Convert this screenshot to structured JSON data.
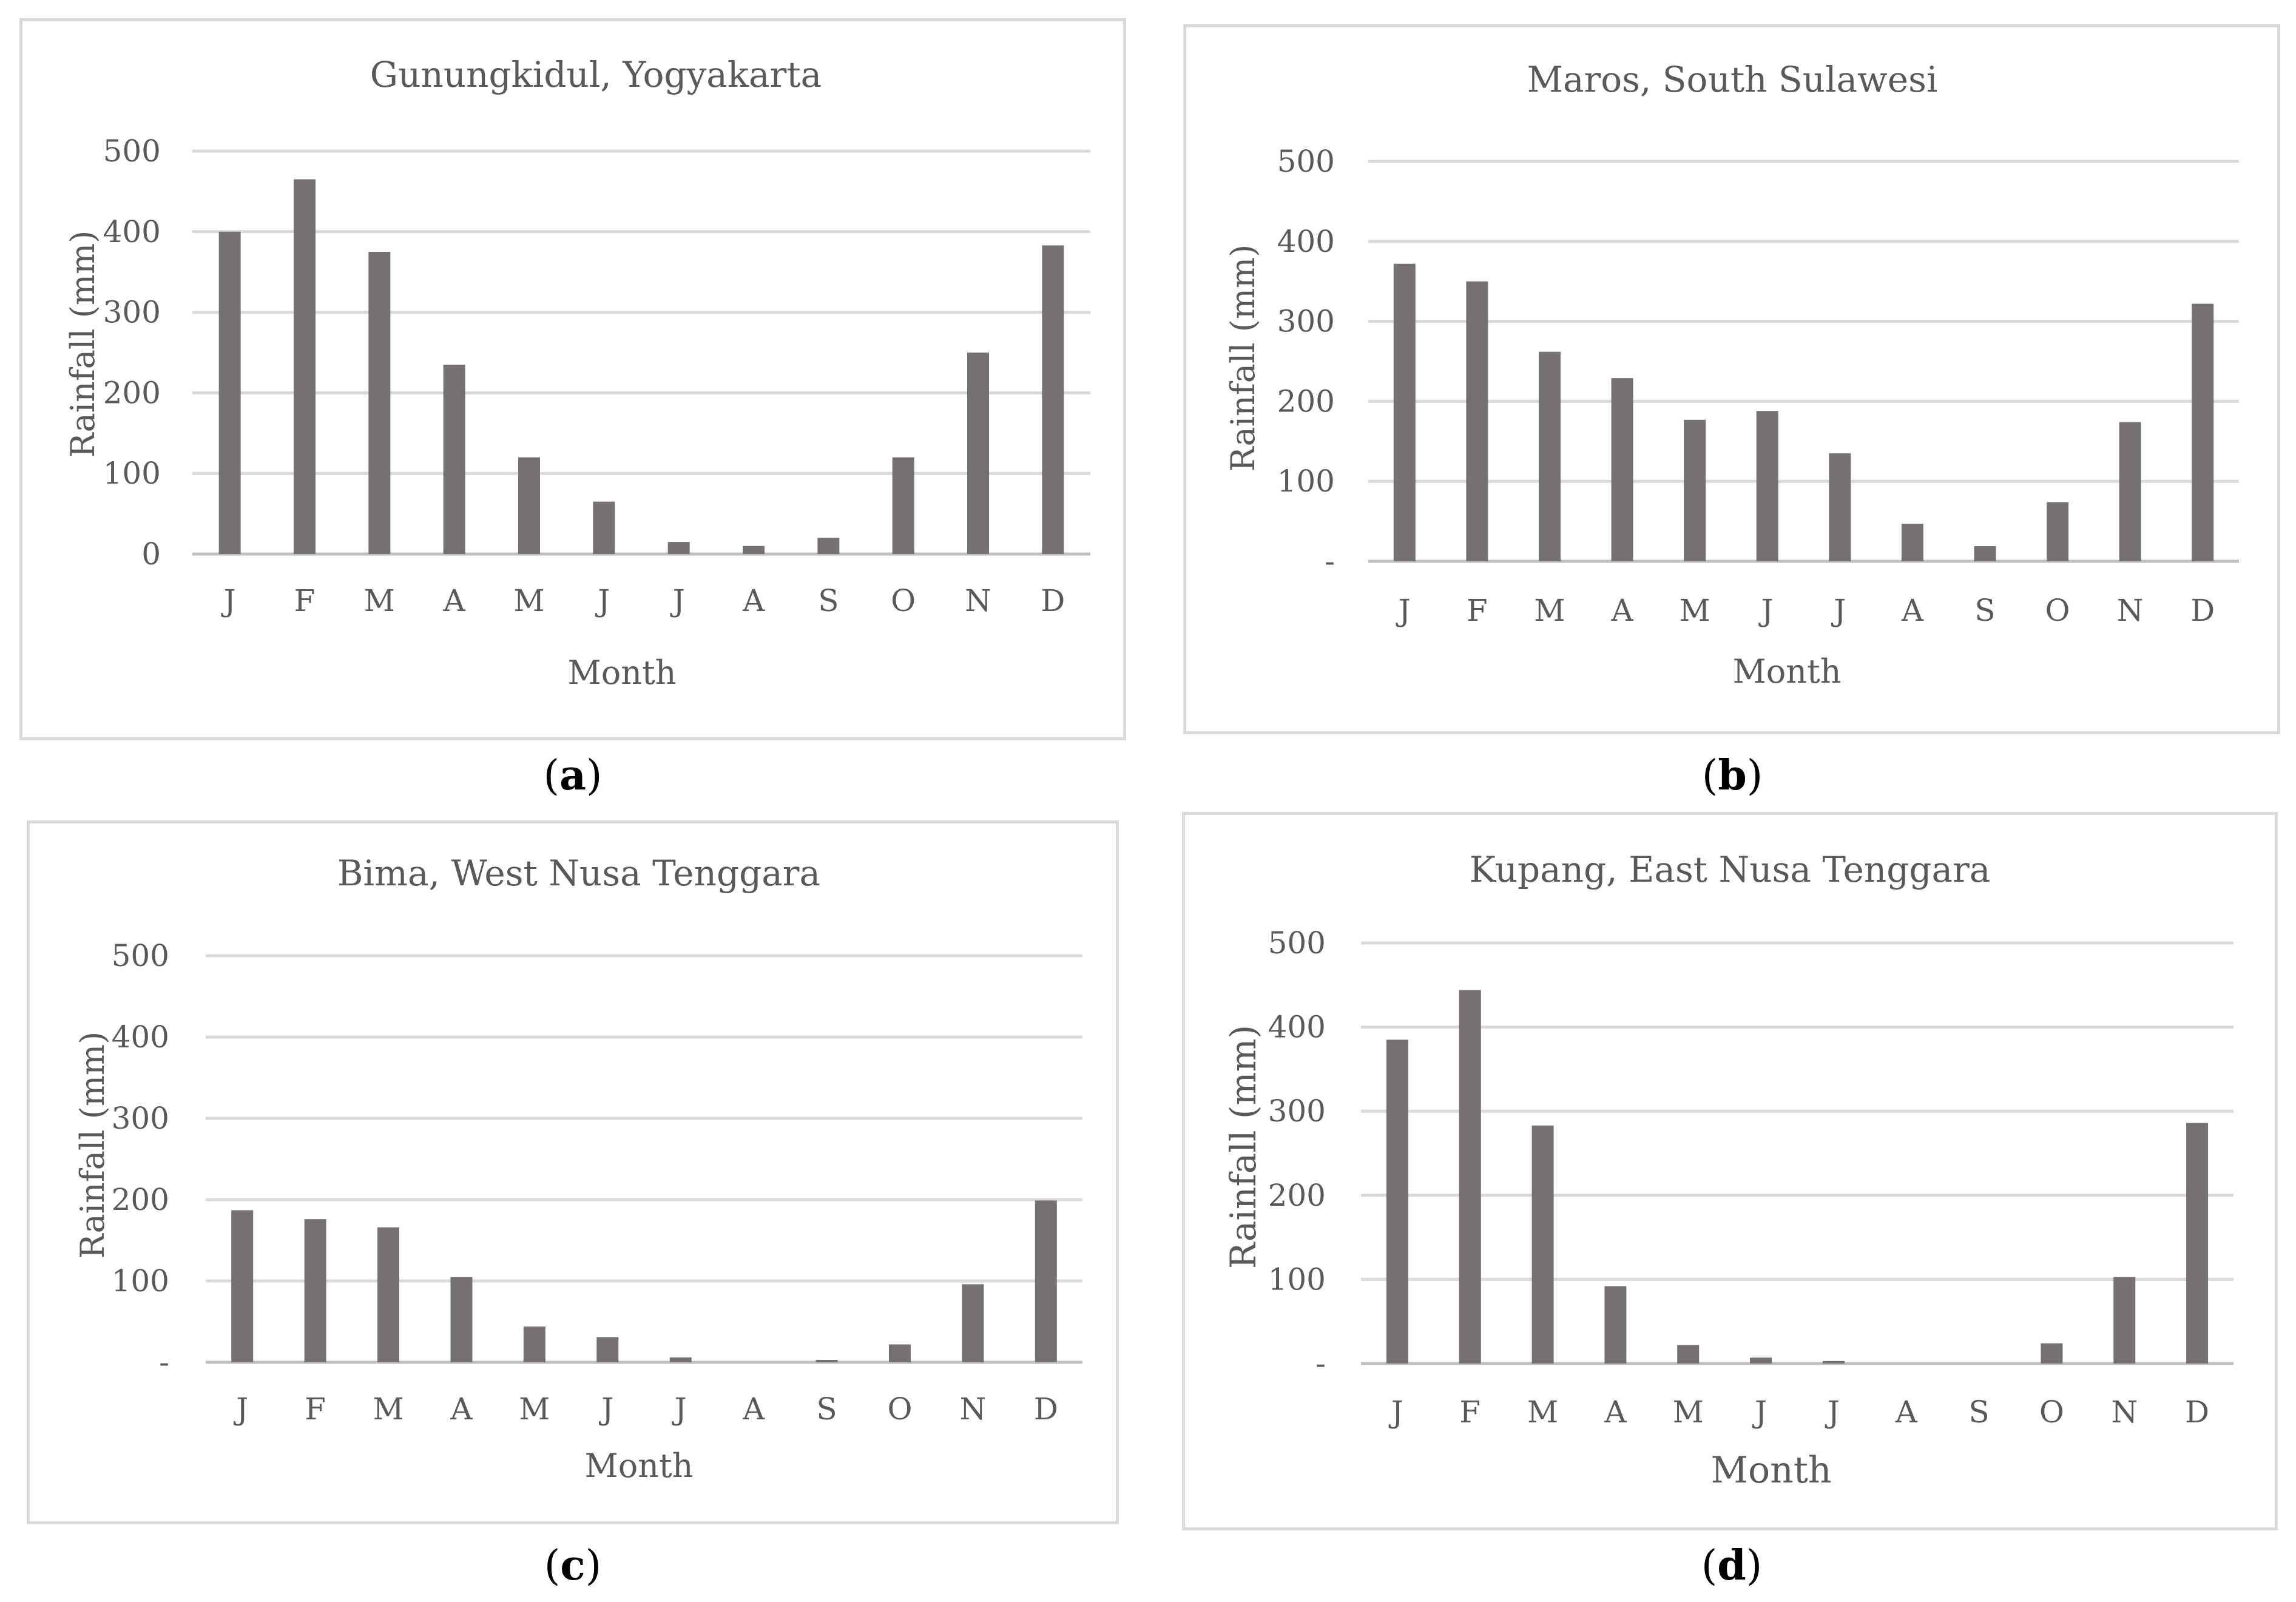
{
  "chart_data": [
    {
      "id": "a",
      "type": "bar",
      "title": "Gunungkidul, Yogyakarta",
      "caption": "a",
      "xlabel": "Month",
      "ylabel": "Rainfall (mm)",
      "ylim": [
        0,
        500
      ],
      "yticks": [
        "0",
        "100",
        "200",
        "300",
        "400",
        "500"
      ],
      "categories": [
        "J",
        "F",
        "M",
        "A",
        "M",
        "J",
        "J",
        "A",
        "S",
        "O",
        "N",
        "D"
      ],
      "values": [
        400,
        465,
        375,
        235,
        120,
        65,
        15,
        10,
        20,
        120,
        250,
        383
      ],
      "bar_color": "#767171"
    },
    {
      "id": "b",
      "type": "bar",
      "title": "Maros, South Sulawesi",
      "caption": "b",
      "xlabel": "Month",
      "ylabel": "Rainfall (mm)",
      "ylim": [
        0,
        500
      ],
      "yticks": [
        "-",
        "100",
        "200",
        "300",
        "400",
        "500"
      ],
      "categories": [
        "J",
        "F",
        "M",
        "A",
        "M",
        "J",
        "J",
        "A",
        "S",
        "O",
        "N",
        "D"
      ],
      "values": [
        372,
        350,
        262,
        229,
        177,
        188,
        135,
        47,
        19,
        74,
        174,
        322
      ],
      "bar_color": "#767171"
    },
    {
      "id": "c",
      "type": "bar",
      "title": "Bima, West Nusa Tenggara",
      "caption": "c",
      "xlabel": "Month",
      "ylabel": "Rainfall (mm)",
      "ylim": [
        0,
        500
      ],
      "yticks": [
        "-",
        "100",
        "200",
        "300",
        "400",
        "500"
      ],
      "categories": [
        "J",
        "F",
        "M",
        "A",
        "M",
        "J",
        "J",
        "A",
        "S",
        "O",
        "N",
        "D"
      ],
      "values": [
        187,
        176,
        166,
        105,
        44,
        31,
        6,
        0,
        3,
        22,
        96,
        199
      ],
      "bar_color": "#767171"
    },
    {
      "id": "d",
      "type": "bar",
      "title": "Kupang, East Nusa Tenggara",
      "caption": "d",
      "xlabel": "Month",
      "ylabel": "Rainfall (mm)",
      "ylim": [
        0,
        500
      ],
      "yticks": [
        "-",
        "100",
        "200",
        "300",
        "400",
        "500"
      ],
      "categories": [
        "J",
        "F",
        "M",
        "A",
        "M",
        "J",
        "J",
        "A",
        "S",
        "O",
        "N",
        "D"
      ],
      "values": [
        385,
        444,
        283,
        92,
        22,
        7,
        3,
        0,
        0,
        24,
        103,
        286
      ],
      "bar_color": "#767171"
    }
  ]
}
